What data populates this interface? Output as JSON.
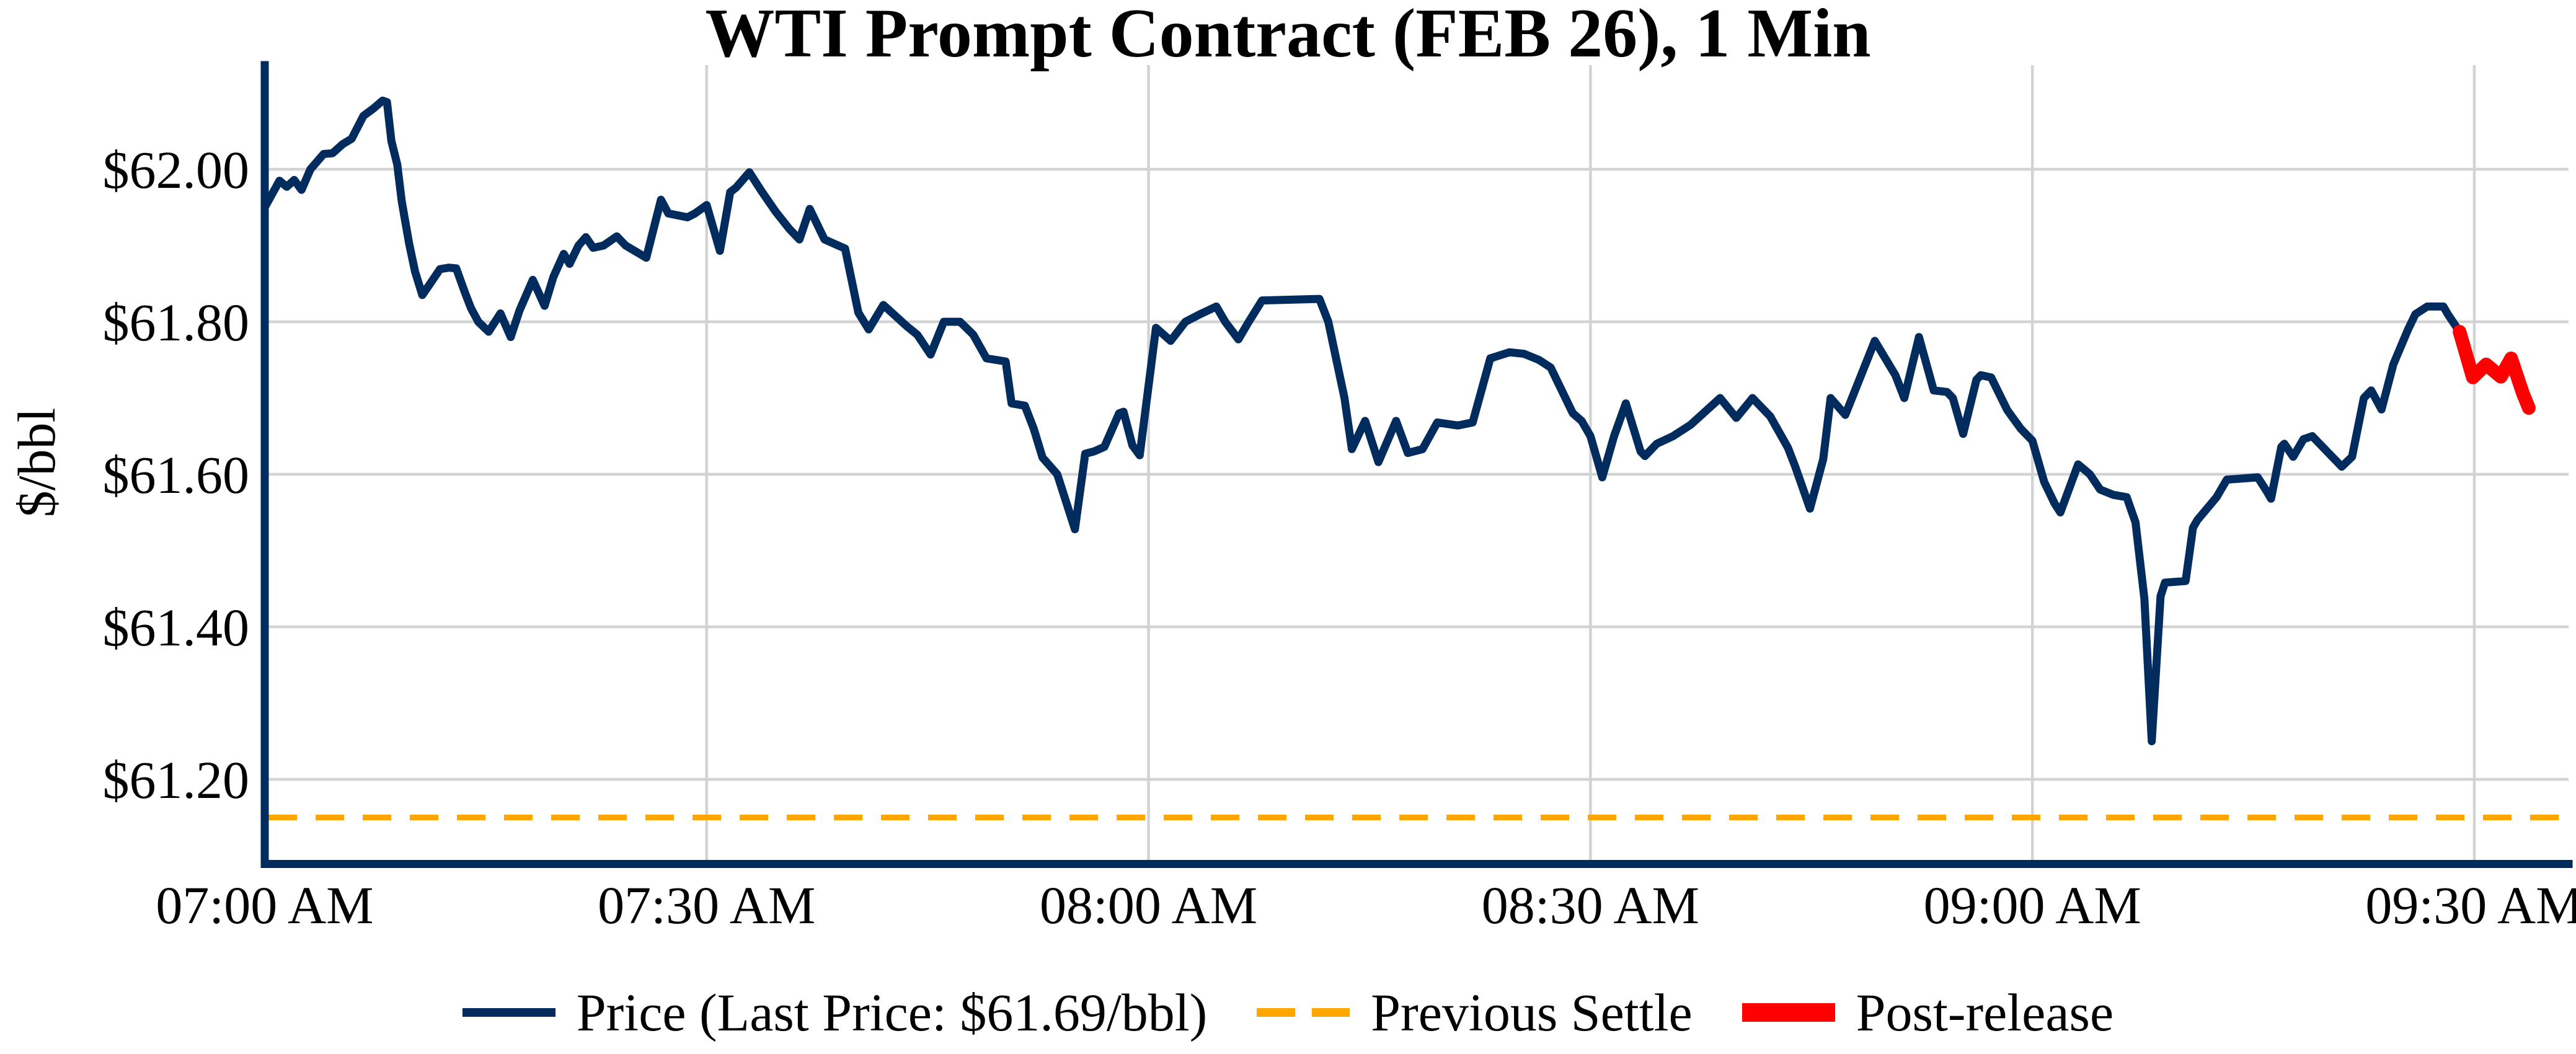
{
  "title": "WTI Prompt Contract (FEB 26), 1 Min",
  "y_axis": {
    "label": "$/bbl",
    "ticks": [
      61.2,
      61.4,
      61.6,
      61.8,
      62.0
    ],
    "tick_labels": [
      "$61.20",
      "$61.40",
      "$61.60",
      "$61.80",
      "$62.00"
    ],
    "range": [
      61.09,
      62.14
    ]
  },
  "x_axis": {
    "tick_minutes": [
      0,
      30,
      60,
      90,
      120,
      150
    ],
    "tick_labels": [
      "07:00 AM",
      "07:30 AM",
      "08:00 AM",
      "08:30 AM",
      "09:00 AM",
      "09:30 AM"
    ],
    "range_minutes": [
      0,
      156.4
    ],
    "start_time_label": "07:00 AM"
  },
  "legend": [
    {
      "label": "Price (Last Price: $61.69/bbl)",
      "color": "#032c5e",
      "style": "solid"
    },
    {
      "label": "Previous Settle",
      "color": "#ffa500",
      "style": "dashed"
    },
    {
      "label": "Post-release",
      "color": "#ff0000",
      "style": "thick-solid"
    }
  ],
  "colors": {
    "price_line": "#032c5e",
    "post_release_line": "#ff0000",
    "previous_settle_line": "#ffa500",
    "gridline": "#d3d3d3",
    "axis_spine": "#032c5e",
    "text": "#000000"
  },
  "chart_data": {
    "type": "line",
    "title": "WTI Prompt Contract (FEB 26), 1 Min",
    "xlabel": "",
    "ylabel": "$/bbl",
    "x_unit": "minutes after 07:00 AM",
    "ylim": [
      61.09,
      62.14
    ],
    "xlim_minutes": [
      0,
      156.4
    ],
    "grid": true,
    "last_price": 61.69,
    "previous_settle_value": 61.15,
    "series": [
      {
        "name": "Price",
        "color": "#032c5e",
        "style": "solid",
        "points": [
          [
            0,
            61.95
          ],
          [
            1,
            61.985
          ],
          [
            1.5,
            61.977
          ],
          [
            2,
            61.986
          ],
          [
            2.5,
            61.973
          ],
          [
            3.1,
            62.0
          ],
          [
            4,
            62.02
          ],
          [
            4.6,
            62.021
          ],
          [
            5.3,
            62.033
          ],
          [
            5.9,
            62.04
          ],
          [
            6.7,
            62.07
          ],
          [
            7.4,
            62.08
          ],
          [
            8,
            62.09
          ],
          [
            8.3,
            62.088
          ],
          [
            8.6,
            62.037
          ],
          [
            9,
            62.006
          ],
          [
            9.3,
            61.958
          ],
          [
            9.8,
            61.903
          ],
          [
            10.2,
            61.866
          ],
          [
            10.7,
            61.835
          ],
          [
            11.3,
            61.852
          ],
          [
            11.9,
            61.869
          ],
          [
            12.5,
            61.871
          ],
          [
            13,
            61.87
          ],
          [
            13.6,
            61.838
          ],
          [
            14,
            61.818
          ],
          [
            14.5,
            61.8
          ],
          [
            15.2,
            61.787
          ],
          [
            16,
            61.811
          ],
          [
            16.7,
            61.78
          ],
          [
            17.3,
            61.815
          ],
          [
            18.2,
            61.855
          ],
          [
            19,
            61.821
          ],
          [
            19.6,
            61.859
          ],
          [
            20.3,
            61.889
          ],
          [
            20.7,
            61.876
          ],
          [
            21.3,
            61.9
          ],
          [
            21.8,
            61.911
          ],
          [
            22.3,
            61.897
          ],
          [
            23,
            61.9
          ],
          [
            23.9,
            61.912
          ],
          [
            24.5,
            61.9
          ],
          [
            25.9,
            61.884
          ],
          [
            26.9,
            61.96
          ],
          [
            27.4,
            61.942
          ],
          [
            28.7,
            61.937
          ],
          [
            29.2,
            61.942
          ],
          [
            30,
            61.953
          ],
          [
            30.9,
            61.893
          ],
          [
            31.6,
            61.97
          ],
          [
            32,
            61.976
          ],
          [
            32.9,
            61.996
          ],
          [
            33.7,
            61.972
          ],
          [
            34.7,
            61.944
          ],
          [
            35.6,
            61.922
          ],
          [
            36.3,
            61.908
          ],
          [
            37,
            61.948
          ],
          [
            38,
            61.908
          ],
          [
            39.4,
            61.896
          ],
          [
            40.3,
            61.812
          ],
          [
            41,
            61.79
          ],
          [
            42,
            61.822
          ],
          [
            43.6,
            61.794
          ],
          [
            44.3,
            61.783
          ],
          [
            45.2,
            61.757
          ],
          [
            46.1,
            61.8
          ],
          [
            47.2,
            61.8
          ],
          [
            48.1,
            61.783
          ],
          [
            49,
            61.752
          ],
          [
            50.3,
            61.748
          ],
          [
            50.7,
            61.693
          ],
          [
            51.6,
            61.69
          ],
          [
            52.2,
            61.66
          ],
          [
            52.8,
            61.622
          ],
          [
            53.8,
            61.6
          ],
          [
            55,
            61.528
          ],
          [
            55.7,
            61.627
          ],
          [
            56.3,
            61.63
          ],
          [
            57,
            61.636
          ],
          [
            58,
            61.68
          ],
          [
            58.3,
            61.682
          ],
          [
            58.9,
            61.638
          ],
          [
            59.4,
            61.625
          ],
          [
            60.5,
            61.792
          ],
          [
            61.5,
            61.775
          ],
          [
            62.5,
            61.8
          ],
          [
            63.5,
            61.81
          ],
          [
            64.6,
            61.82
          ],
          [
            65.2,
            61.8
          ],
          [
            66.1,
            61.777
          ],
          [
            66.8,
            61.8
          ],
          [
            67.7,
            61.828
          ],
          [
            71.6,
            61.83
          ],
          [
            72.2,
            61.8
          ],
          [
            73.3,
            61.7
          ],
          [
            73.8,
            61.633
          ],
          [
            74.7,
            61.67
          ],
          [
            75.6,
            61.616
          ],
          [
            76.8,
            61.67
          ],
          [
            77.6,
            61.628
          ],
          [
            78.6,
            61.633
          ],
          [
            79.6,
            61.668
          ],
          [
            81,
            61.664
          ],
          [
            82,
            61.668
          ],
          [
            83.2,
            61.752
          ],
          [
            84.5,
            61.76
          ],
          [
            85.5,
            61.758
          ],
          [
            86.5,
            61.75
          ],
          [
            87.3,
            61.74
          ],
          [
            88.3,
            61.7
          ],
          [
            88.8,
            61.68
          ],
          [
            89.4,
            61.67
          ],
          [
            90,
            61.65
          ],
          [
            90.8,
            61.596
          ],
          [
            91.6,
            61.65
          ],
          [
            92.4,
            61.693
          ],
          [
            93.4,
            61.63
          ],
          [
            93.7,
            61.624
          ],
          [
            94.5,
            61.64
          ],
          [
            95.6,
            61.65
          ],
          [
            96.8,
            61.665
          ],
          [
            98.8,
            61.7
          ],
          [
            99.9,
            61.674
          ],
          [
            101,
            61.7
          ],
          [
            102.2,
            61.676
          ],
          [
            103.4,
            61.635
          ],
          [
            103.9,
            61.61
          ],
          [
            104.9,
            61.555
          ],
          [
            105.8,
            61.62
          ],
          [
            106.3,
            61.7
          ],
          [
            107.3,
            61.678
          ],
          [
            109.3,
            61.775
          ],
          [
            110.7,
            61.73
          ],
          [
            111.3,
            61.7
          ],
          [
            112.3,
            61.78
          ],
          [
            113.3,
            61.71
          ],
          [
            114.2,
            61.708
          ],
          [
            114.6,
            61.7
          ],
          [
            115.3,
            61.653
          ],
          [
            116.2,
            61.724
          ],
          [
            116.5,
            61.73
          ],
          [
            117.2,
            61.727
          ],
          [
            118.3,
            61.684
          ],
          [
            119.2,
            61.66
          ],
          [
            120,
            61.644
          ],
          [
            120.8,
            61.59
          ],
          [
            121.5,
            61.562
          ],
          [
            121.9,
            61.55
          ],
          [
            123.1,
            61.613
          ],
          [
            123.9,
            61.6
          ],
          [
            124.6,
            61.58
          ],
          [
            125.5,
            61.573
          ],
          [
            126.4,
            61.57
          ],
          [
            127,
            61.537
          ],
          [
            127.6,
            61.437
          ],
          [
            128.1,
            61.25
          ],
          [
            128.7,
            61.44
          ],
          [
            129,
            61.458
          ],
          [
            130.4,
            61.46
          ],
          [
            130.9,
            61.53
          ],
          [
            131.2,
            61.54
          ],
          [
            132.5,
            61.57
          ],
          [
            133.2,
            61.593
          ],
          [
            135.3,
            61.596
          ],
          [
            135.9,
            61.578
          ],
          [
            136.2,
            61.568
          ],
          [
            136.9,
            61.636
          ],
          [
            137.1,
            61.64
          ],
          [
            137.7,
            61.623
          ],
          [
            138.4,
            61.646
          ],
          [
            139,
            61.65
          ],
          [
            140,
            61.63
          ],
          [
            141,
            61.61
          ],
          [
            141.7,
            61.623
          ],
          [
            142.5,
            61.7
          ],
          [
            143,
            61.71
          ],
          [
            143.7,
            61.685
          ],
          [
            144.5,
            61.744
          ],
          [
            145.5,
            61.79
          ],
          [
            146,
            61.81
          ],
          [
            146.8,
            61.82
          ],
          [
            147.9,
            61.82
          ],
          [
            148.2,
            61.81
          ],
          [
            149,
            61.787
          ]
        ]
      },
      {
        "name": "Post-release",
        "color": "#ff0000",
        "style": "thick-solid",
        "points": [
          [
            149,
            61.787
          ],
          [
            149.9,
            61.727
          ],
          [
            150.8,
            61.744
          ],
          [
            151.8,
            61.728
          ],
          [
            152.5,
            61.752
          ],
          [
            153.3,
            61.706
          ],
          [
            153.7,
            61.687
          ]
        ]
      },
      {
        "name": "Previous Settle",
        "color": "#ffa500",
        "style": "dashed",
        "value": 61.15
      }
    ],
    "legend_position": "bottom-center"
  }
}
